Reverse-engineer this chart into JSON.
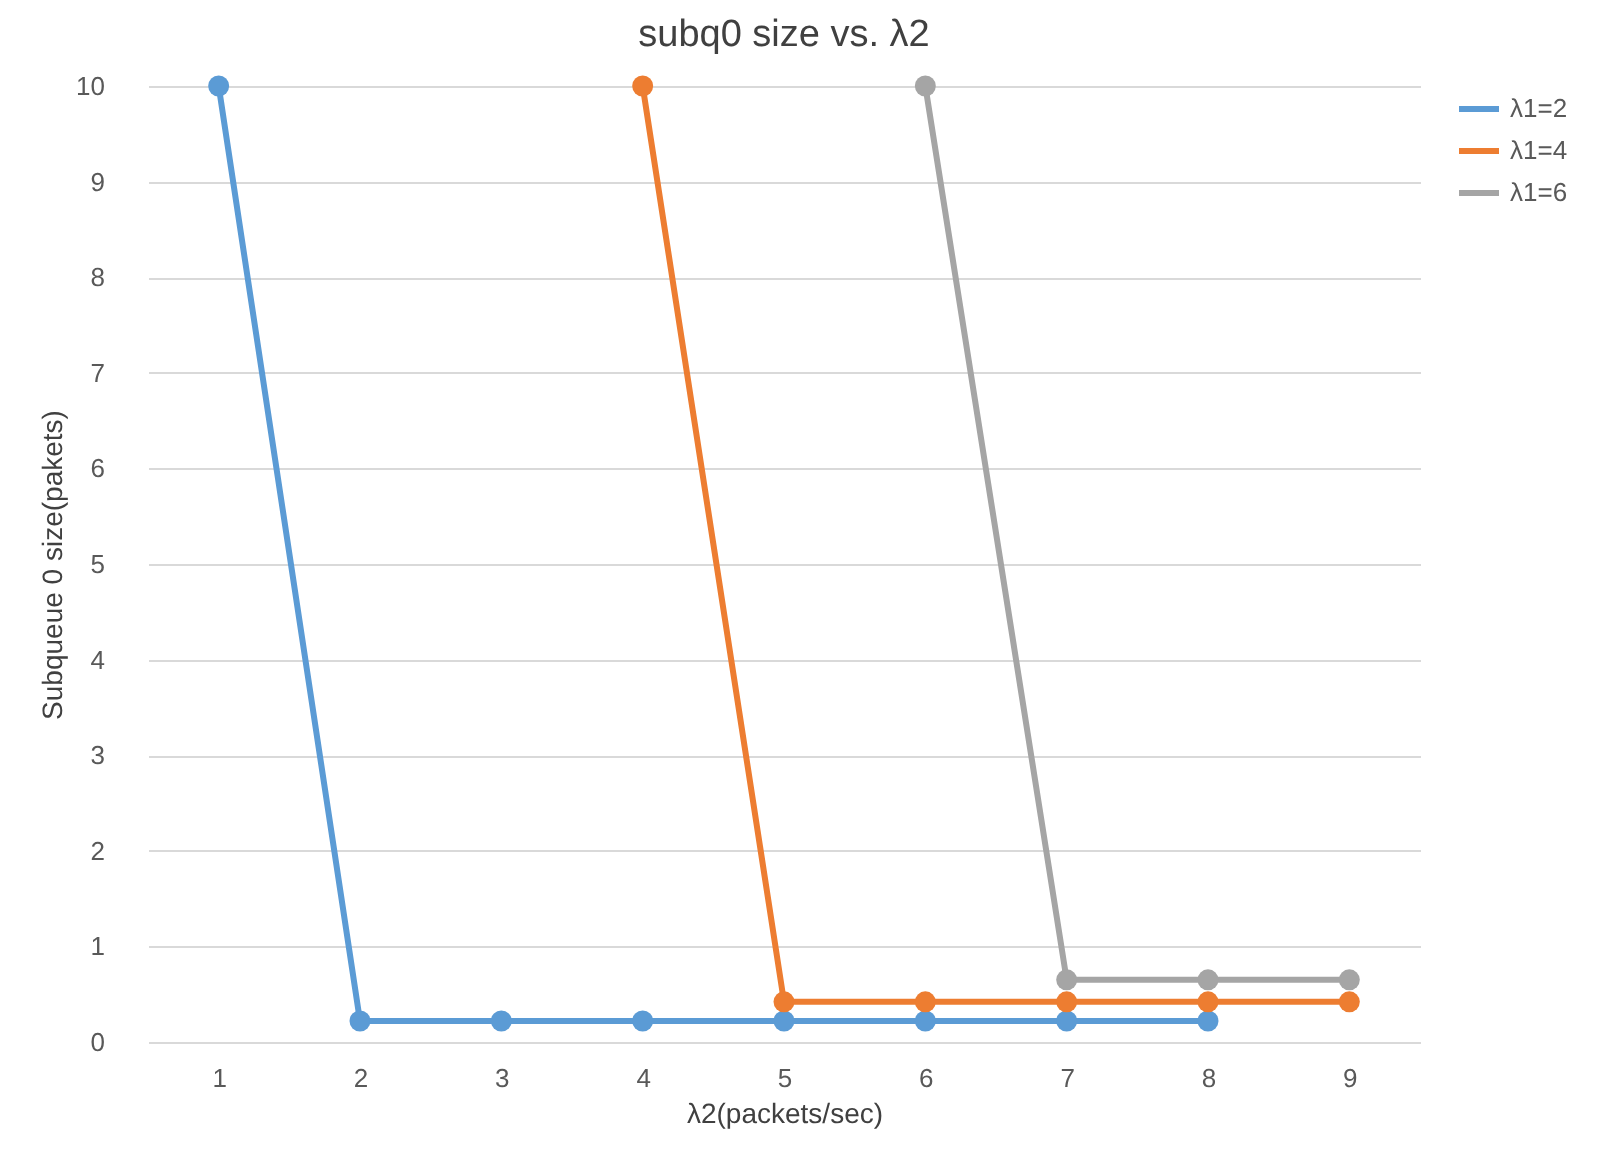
{
  "chart_data": {
    "type": "line",
    "title": "subq0 size vs. λ2",
    "xlabel": "λ2(packets/sec)",
    "ylabel": "Subqueue 0 size(pakets)",
    "categories": [
      "1",
      "2",
      "3",
      "4",
      "5",
      "6",
      "7",
      "8",
      "9"
    ],
    "series": [
      {
        "name": "λ1=2",
        "color": "#5b9bd5",
        "values": [
          10,
          0.22,
          0.22,
          0.22,
          0.22,
          0.22,
          0.22,
          0.22,
          null
        ]
      },
      {
        "name": "λ1=4",
        "color": "#ed7d31",
        "values": [
          null,
          null,
          null,
          10,
          0.42,
          0.42,
          0.42,
          0.42,
          0.42
        ]
      },
      {
        "name": "λ1=6",
        "color": "#a5a5a5",
        "values": [
          null,
          null,
          null,
          null,
          null,
          10,
          0.65,
          0.65,
          0.65
        ]
      }
    ],
    "ylim": [
      0,
      10
    ],
    "yticks": [
      0,
      1,
      2,
      3,
      4,
      5,
      6,
      7,
      8,
      9,
      10
    ],
    "grid": "y",
    "legend": "right",
    "marker": "circle",
    "line_style": "solid"
  }
}
